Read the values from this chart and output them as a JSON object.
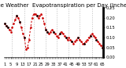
{
  "title": "Milwaukee Weather  Evapotranspiration per Day (Inches)",
  "y_values": [
    0.17,
    0.16,
    0.15,
    0.14,
    0.13,
    0.15,
    0.17,
    0.19,
    0.21,
    0.2,
    0.18,
    0.15,
    0.12,
    0.1,
    0.04,
    0.05,
    0.09,
    0.15,
    0.2,
    0.22,
    0.22,
    0.21,
    0.2,
    0.21,
    0.22,
    0.2,
    0.17,
    0.14,
    0.13,
    0.12,
    0.13,
    0.14,
    0.13,
    0.12,
    0.11,
    0.1,
    0.12,
    0.13,
    0.12,
    0.11,
    0.1,
    0.09,
    0.1,
    0.09,
    0.08,
    0.07,
    0.08,
    0.09,
    0.1,
    0.09,
    0.08,
    0.07,
    0.07,
    0.08,
    0.09,
    0.1,
    0.11,
    0.12,
    0.11,
    0.1,
    0.09,
    0.08,
    0.07,
    0.06,
    0.05
  ],
  "black_indices": [
    0,
    1,
    2,
    8,
    10,
    13,
    21,
    27,
    28,
    32,
    36,
    40,
    44,
    48,
    52,
    56,
    60,
    64
  ],
  "ylim": [
    0.0,
    0.25
  ],
  "yticks": [
    0.0,
    0.05,
    0.1,
    0.15,
    0.2,
    0.25
  ],
  "ytick_labels": [
    "0.00",
    "0.05",
    "0.10",
    "0.15",
    "0.20",
    "0.25"
  ],
  "vline_positions": [
    5,
    13,
    19,
    27,
    34,
    42,
    49,
    57
  ],
  "line_color": "#cc0000",
  "bg_color": "#ffffff",
  "grid_color": "#bbbbbb",
  "title_fontsize": 5.0,
  "tick_fontsize": 3.8,
  "figsize": [
    1.6,
    0.87
  ],
  "dpi": 100
}
